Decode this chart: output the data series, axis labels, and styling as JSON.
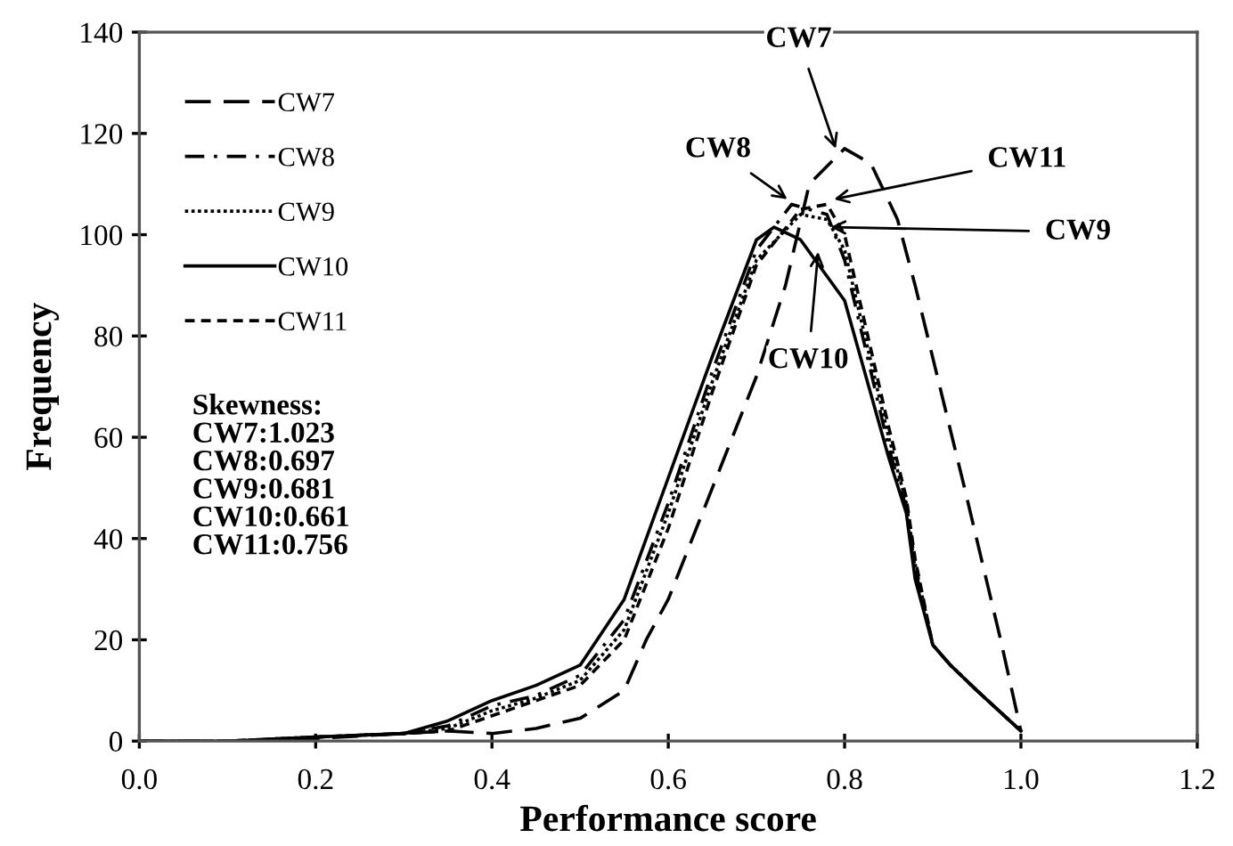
{
  "chart_data": {
    "type": "line",
    "xlabel": "Performance score",
    "ylabel": "Frequency",
    "xlim": [
      0,
      1.2
    ],
    "xticks": [
      {
        "value": 0,
        "label": "0.0"
      },
      0.2,
      0.4,
      0.6,
      0.8,
      {
        "value": 1.0,
        "label": "1.0"
      },
      1.2
    ],
    "ylim": [
      0,
      140
    ],
    "yticks": [
      0,
      20,
      40,
      60,
      80,
      100,
      120,
      140
    ],
    "grid": false,
    "legend": "top left",
    "marker": "none",
    "series": [
      {
        "name": "CW7",
        "color": "#000000",
        "line_style": "longdash",
        "x": [
          0,
          0.1,
          0.2,
          0.3,
          0.35,
          0.4,
          0.45,
          0.5,
          0.55,
          0.575,
          0.6,
          0.65,
          0.7,
          0.733,
          0.76,
          0.8,
          0.83,
          0.86,
          0.88,
          0.936,
          0.977,
          1.0
        ],
        "values": [
          0,
          0,
          0.5,
          1.5,
          2,
          1.5,
          2.5,
          4.5,
          10,
          20,
          28,
          50,
          72,
          90,
          110,
          117,
          114,
          103,
          90,
          50,
          20,
          2
        ]
      },
      {
        "name": "CW8",
        "color": "#000000",
        "line_style": "dashdot",
        "x": [
          0,
          0.1,
          0.2,
          0.3,
          0.35,
          0.4,
          0.45,
          0.5,
          0.55,
          0.6,
          0.65,
          0.7,
          0.74,
          0.78,
          0.8,
          0.85,
          0.87,
          0.88,
          0.9,
          0.92,
          0.95,
          1.0
        ],
        "values": [
          0,
          0,
          0.8,
          1.5,
          3,
          7,
          9,
          13,
          24,
          47,
          73,
          97,
          106,
          104,
          95,
          58,
          46,
          34,
          19,
          15,
          10,
          2
        ]
      },
      {
        "name": "CW9",
        "color": "#000000",
        "line_style": "dotted",
        "x": [
          0,
          0.1,
          0.2,
          0.3,
          0.35,
          0.4,
          0.45,
          0.5,
          0.55,
          0.6,
          0.65,
          0.7,
          0.75,
          0.78,
          0.8,
          0.85,
          0.87,
          0.88,
          0.9,
          0.92,
          0.95,
          1.0
        ],
        "values": [
          0,
          0,
          0.8,
          1.5,
          2.5,
          6,
          8.5,
          12,
          22,
          45,
          71,
          95,
          104,
          103,
          97,
          60,
          47,
          35,
          19,
          15,
          10,
          2
        ]
      },
      {
        "name": "CW10",
        "color": "#000000",
        "line_style": "solid",
        "x": [
          0,
          0.1,
          0.2,
          0.3,
          0.35,
          0.4,
          0.45,
          0.5,
          0.55,
          0.6,
          0.65,
          0.7,
          0.72,
          0.75,
          0.8,
          0.85,
          0.87,
          0.88,
          0.9,
          0.92,
          0.95,
          1.0
        ],
        "values": [
          0,
          0,
          0.8,
          1.5,
          4,
          8,
          11,
          15,
          28,
          52,
          76,
          99,
          101.5,
          99,
          87,
          56,
          45,
          32,
          19,
          15,
          10,
          2
        ]
      },
      {
        "name": "CW11",
        "color": "#000000",
        "line_style": "dashed",
        "x": [
          0,
          0.1,
          0.2,
          0.3,
          0.35,
          0.4,
          0.45,
          0.5,
          0.55,
          0.6,
          0.65,
          0.7,
          0.75,
          0.78,
          0.8,
          0.85,
          0.87,
          0.88,
          0.9,
          0.92,
          0.95,
          1.0
        ],
        "values": [
          0,
          0,
          0.8,
          1.5,
          2,
          5,
          8,
          11,
          20,
          42,
          69,
          94,
          105,
          106,
          100,
          62,
          48,
          36,
          19,
          15,
          10,
          2
        ]
      }
    ],
    "annotations": [
      {
        "text": "CW7",
        "x": 0.79,
        "y": 117
      },
      {
        "text": "CW8",
        "x": 0.735,
        "y": 107
      },
      {
        "text": "CW11",
        "x": 0.788,
        "y": 107
      },
      {
        "text": "CW9",
        "x": 0.784,
        "y": 101.5
      },
      {
        "text": "CW10",
        "x": 0.77,
        "y": 96.6
      },
      "Skewness:\nCW7:1.023\nCW8:0.697\nCW9:0.681\nCW10:0.661\nCW11:0.756"
    ]
  }
}
